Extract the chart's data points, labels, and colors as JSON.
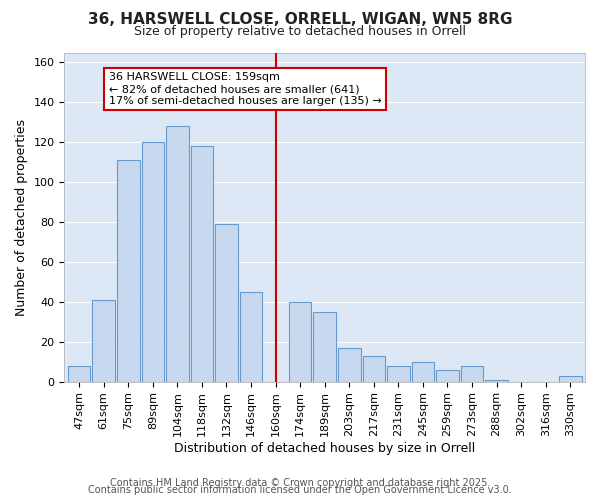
{
  "title": "36, HARSWELL CLOSE, ORRELL, WIGAN, WN5 8RG",
  "subtitle": "Size of property relative to detached houses in Orrell",
  "xlabel": "Distribution of detached houses by size in Orrell",
  "ylabel": "Number of detached properties",
  "categories": [
    "47sqm",
    "61sqm",
    "75sqm",
    "89sqm",
    "104sqm",
    "118sqm",
    "132sqm",
    "146sqm",
    "160sqm",
    "174sqm",
    "189sqm",
    "203sqm",
    "217sqm",
    "231sqm",
    "245sqm",
    "259sqm",
    "273sqm",
    "288sqm",
    "302sqm",
    "316sqm",
    "330sqm"
  ],
  "values": [
    8,
    41,
    111,
    120,
    128,
    118,
    79,
    45,
    0,
    40,
    35,
    17,
    13,
    8,
    10,
    6,
    8,
    1,
    0,
    0,
    3
  ],
  "bar_color": "#c8d9ef",
  "bar_edge_color": "#6699cc",
  "highlight_bar_index": 8,
  "highlight_line_color": "#cc0000",
  "annotation_title": "36 HARSWELL CLOSE: 159sqm",
  "annotation_line1": "← 82% of detached houses are smaller (641)",
  "annotation_line2": "17% of semi-detached houses are larger (135) →",
  "annotation_box_color": "#ffffff",
  "annotation_box_edge_color": "#cc0000",
  "ylim": [
    0,
    165
  ],
  "yticks": [
    0,
    20,
    40,
    60,
    80,
    100,
    120,
    140,
    160
  ],
  "footer1": "Contains HM Land Registry data © Crown copyright and database right 2025.",
  "footer2": "Contains public sector information licensed under the Open Government Licence v3.0.",
  "fig_background_color": "#ffffff",
  "plot_background_color": "#dce8f5",
  "grid_color": "#ffffff",
  "title_fontsize": 11,
  "subtitle_fontsize": 9,
  "axis_label_fontsize": 9,
  "tick_fontsize": 8,
  "annotation_fontsize": 8,
  "footer_fontsize": 7
}
